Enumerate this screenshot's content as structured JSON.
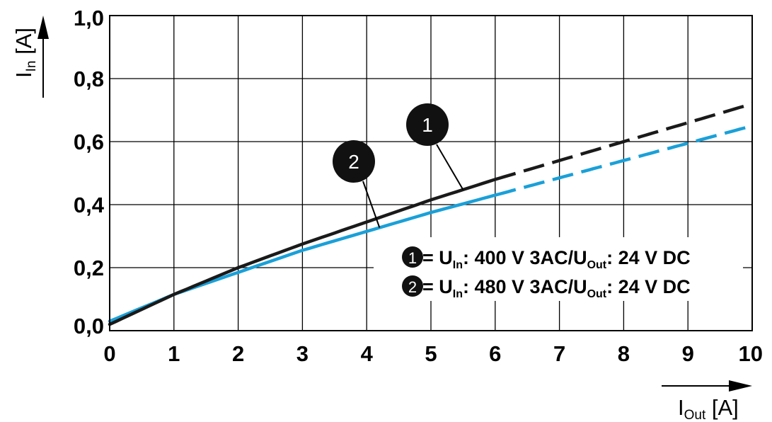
{
  "chart_data": {
    "type": "line",
    "x_axis": {
      "label": "I",
      "label_sub": "Out",
      "unit": "[A]",
      "range": [
        0,
        10
      ],
      "ticks": [
        "0",
        "1",
        "2",
        "3",
        "4",
        "5",
        "6",
        "7",
        "8",
        "9",
        "10"
      ]
    },
    "y_axis": {
      "label": "I",
      "label_sub": "In",
      "unit": "[A]",
      "range": [
        0,
        1.0
      ],
      "ticks": [
        "0,0",
        "0,2",
        "0,4",
        "0,6",
        "0,8",
        "1,0"
      ]
    },
    "grid": true,
    "series": [
      {
        "marker": "1",
        "color": "#1a1a1a",
        "solid_until_x": 6,
        "x": [
          0,
          1,
          2,
          3,
          4,
          5,
          6,
          7,
          8,
          9,
          10
        ],
        "y": [
          0.02,
          0.115,
          0.2,
          0.275,
          0.345,
          0.415,
          0.48,
          0.54,
          0.6,
          0.66,
          0.72
        ]
      },
      {
        "marker": "2",
        "color": "#1aa0d8",
        "solid_until_x": 6,
        "x": [
          0,
          1,
          2,
          3,
          4,
          5,
          6,
          7,
          8,
          9,
          10
        ],
        "y": [
          0.03,
          0.115,
          0.185,
          0.255,
          0.315,
          0.375,
          0.43,
          0.485,
          0.54,
          0.595,
          0.65
        ]
      }
    ],
    "legend": {
      "position": "center-right",
      "entries": [
        {
          "marker": "1",
          "prefix": "= U",
          "sub1": "In",
          "mid": ": 400 V 3AC/U",
          "sub2": "Out",
          "suffix": ": 24 V DC"
        },
        {
          "marker": "2",
          "prefix": "= U",
          "sub1": "In",
          "mid": ": 480 V 3AC/U",
          "sub2": "Out",
          "suffix": ": 24 V DC"
        }
      ]
    },
    "callouts": [
      {
        "marker": "1"
      },
      {
        "marker": "2"
      }
    ]
  }
}
